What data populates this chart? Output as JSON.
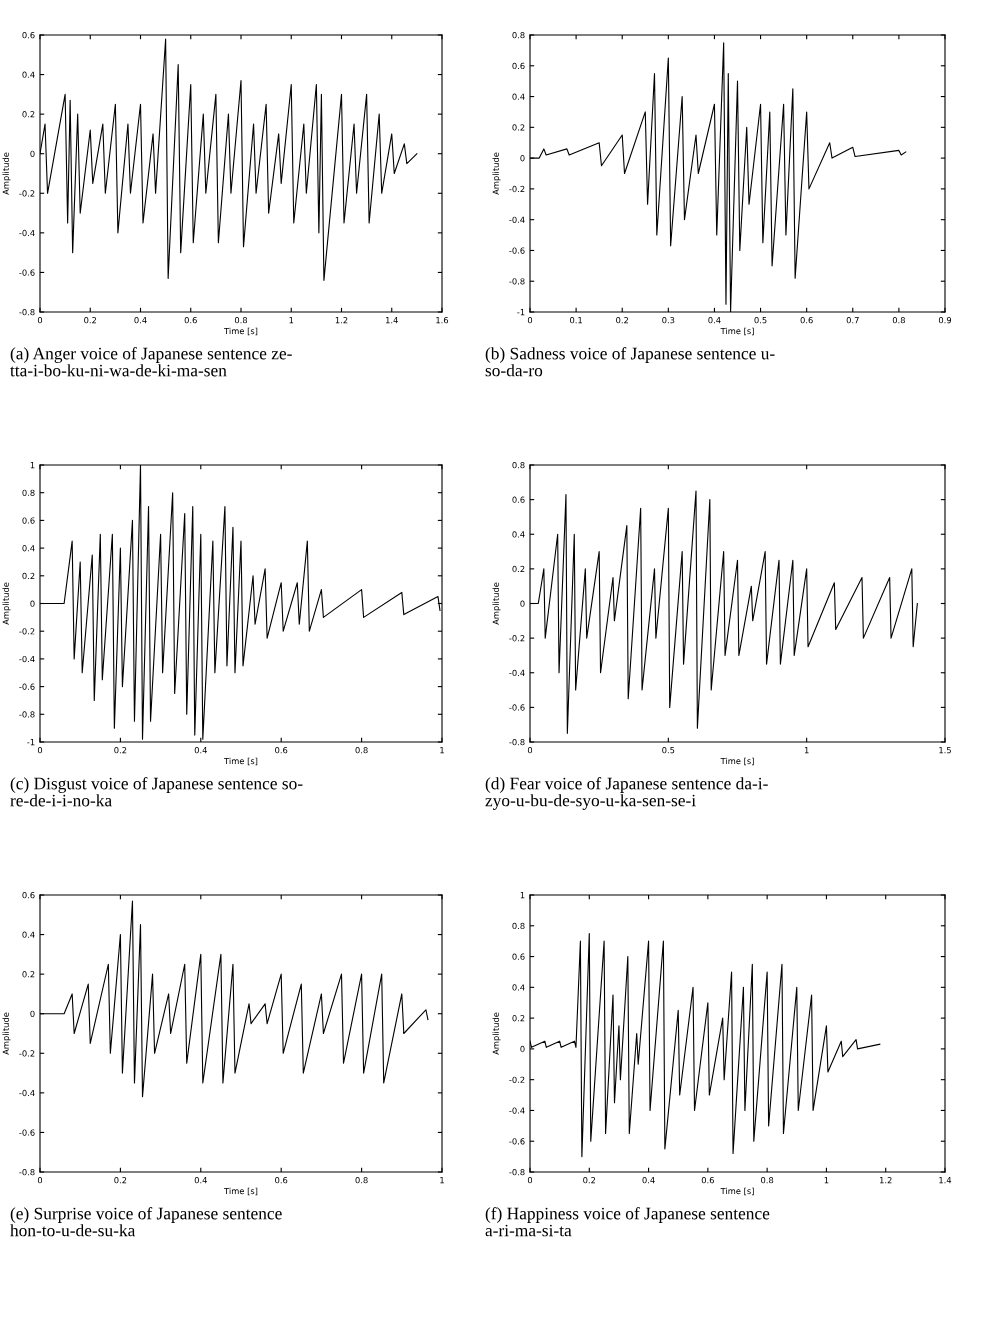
{
  "chart_data": [
    {
      "type": "line",
      "xlabel": "Time [s]",
      "ylabel": "Amplitude",
      "xlim": [
        0,
        1.6
      ],
      "xticks": [
        0,
        0.2,
        0.4,
        0.6,
        0.8,
        1,
        1.2,
        1.4,
        1.6
      ],
      "ylim": [
        -0.8,
        0.6
      ],
      "yticks": [
        -0.8,
        -0.6,
        -0.4,
        -0.2,
        0,
        0.2,
        0.4,
        0.6
      ],
      "grid": false,
      "marker": "none",
      "line_style": "solid",
      "annotations": [
        "(a) Anger voice of Japanese sentence ze-\ntta-i-bo-ku-ni-wa-de-ki-ma-sen"
      ],
      "series": [
        {
          "color": "#000000",
          "x": [
            0,
            0.02,
            0.03,
            0.1,
            0.11,
            0.12,
            0.13,
            0.15,
            0.16,
            0.2,
            0.21,
            0.25,
            0.26,
            0.3,
            0.31,
            0.35,
            0.36,
            0.4,
            0.41,
            0.45,
            0.46,
            0.5,
            0.51,
            0.55,
            0.56,
            0.6,
            0.61,
            0.65,
            0.66,
            0.7,
            0.71,
            0.75,
            0.76,
            0.8,
            0.81,
            0.85,
            0.86,
            0.9,
            0.91,
            0.95,
            0.96,
            1.0,
            1.01,
            1.05,
            1.06,
            1.1,
            1.11,
            1.12,
            1.13,
            1.2,
            1.21,
            1.25,
            1.26,
            1.3,
            1.31,
            1.35,
            1.36,
            1.4,
            1.41,
            1.45,
            1.46,
            1.5
          ],
          "values": [
            0,
            0.15,
            -0.2,
            0.3,
            -0.35,
            0.27,
            -0.5,
            0.2,
            -0.3,
            0.12,
            -0.15,
            0.15,
            -0.2,
            0.25,
            -0.4,
            0.15,
            -0.2,
            0.25,
            -0.35,
            0.1,
            -0.2,
            0.58,
            -0.63,
            0.45,
            -0.5,
            0.35,
            -0.45,
            0.2,
            -0.2,
            0.3,
            -0.45,
            0.2,
            -0.2,
            0.37,
            -0.47,
            0.15,
            -0.2,
            0.25,
            -0.3,
            0.1,
            -0.15,
            0.35,
            -0.35,
            0.15,
            -0.2,
            0.35,
            -0.4,
            0.3,
            -0.64,
            0.3,
            -0.35,
            0.15,
            -0.2,
            0.3,
            -0.35,
            0.2,
            -0.2,
            0.1,
            -0.1,
            0.05,
            -0.05,
            0
          ]
        }
      ]
    },
    {
      "type": "line",
      "xlabel": "Time [s]",
      "ylabel": "Amplitude",
      "xlim": [
        0,
        0.9
      ],
      "xticks": [
        0,
        0.1,
        0.2,
        0.3,
        0.4,
        0.5,
        0.6,
        0.7,
        0.8,
        0.9
      ],
      "ylim": [
        -1,
        0.8
      ],
      "yticks": [
        -1,
        -0.8,
        -0.6,
        -0.4,
        -0.2,
        0,
        0.2,
        0.4,
        0.6,
        0.8
      ],
      "grid": false,
      "marker": "none",
      "line_style": "solid",
      "annotations": [
        "(b) Sadness voice of Japanese sentence u-\nso-da-ro"
      ],
      "series": [
        {
          "color": "#000000",
          "x": [
            0,
            0.02,
            0.03,
            0.035,
            0.08,
            0.085,
            0.15,
            0.155,
            0.2,
            0.205,
            0.25,
            0.255,
            0.27,
            0.275,
            0.3,
            0.305,
            0.33,
            0.335,
            0.36,
            0.365,
            0.4,
            0.405,
            0.42,
            0.425,
            0.43,
            0.435,
            0.45,
            0.455,
            0.47,
            0.475,
            0.5,
            0.505,
            0.52,
            0.525,
            0.55,
            0.555,
            0.57,
            0.575,
            0.6,
            0.605,
            0.65,
            0.655,
            0.7,
            0.705,
            0.8,
            0.805,
            0.815
          ],
          "values": [
            0,
            0,
            0.06,
            0.02,
            0.06,
            0.02,
            0.1,
            -0.05,
            0.15,
            -0.1,
            0.3,
            -0.3,
            0.55,
            -0.5,
            0.65,
            -0.57,
            0.4,
            -0.4,
            0.15,
            -0.1,
            0.35,
            -0.5,
            0.75,
            -0.95,
            0.55,
            -1.0,
            0.5,
            -0.6,
            0.2,
            -0.3,
            0.35,
            -0.55,
            0.3,
            -0.7,
            0.35,
            -0.5,
            0.45,
            -0.78,
            0.3,
            -0.2,
            0.1,
            0.0,
            0.07,
            0.01,
            0.05,
            0.02,
            0.04
          ]
        }
      ]
    },
    {
      "type": "line",
      "xlabel": "Time [s]",
      "ylabel": "Amplitude",
      "xlim": [
        0,
        1
      ],
      "xticks": [
        0,
        0.2,
        0.4,
        0.6,
        0.8,
        1
      ],
      "ylim": [
        -1,
        1
      ],
      "yticks": [
        -1,
        -0.8,
        -0.6,
        -0.4,
        -0.2,
        0,
        0.2,
        0.4,
        0.6,
        0.8,
        1
      ],
      "grid": false,
      "marker": "none",
      "line_style": "solid",
      "annotations": [
        "(c) Disgust voice of Japanese sentence so-\nre-de-i-i-no-ka"
      ],
      "series": [
        {
          "color": "#000000",
          "x": [
            0,
            0.06,
            0.08,
            0.085,
            0.1,
            0.105,
            0.13,
            0.135,
            0.15,
            0.155,
            0.18,
            0.185,
            0.2,
            0.205,
            0.23,
            0.235,
            0.25,
            0.255,
            0.27,
            0.275,
            0.3,
            0.305,
            0.33,
            0.335,
            0.36,
            0.365,
            0.38,
            0.385,
            0.4,
            0.405,
            0.43,
            0.435,
            0.46,
            0.465,
            0.48,
            0.485,
            0.5,
            0.505,
            0.53,
            0.535,
            0.56,
            0.565,
            0.6,
            0.605,
            0.64,
            0.645,
            0.665,
            0.67,
            0.7,
            0.705,
            0.8,
            0.805,
            0.9,
            0.905,
            0.99,
            0.995
          ],
          "values": [
            0,
            0,
            0.45,
            -0.4,
            0.3,
            -0.5,
            0.35,
            -0.7,
            0.5,
            -0.55,
            0.5,
            -0.9,
            0.4,
            -0.6,
            0.6,
            -0.85,
            1.0,
            -0.98,
            0.7,
            -0.85,
            0.5,
            -0.5,
            0.8,
            -0.65,
            0.65,
            -0.8,
            0.7,
            -0.95,
            0.5,
            -0.98,
            0.45,
            -0.5,
            0.7,
            -0.45,
            0.55,
            -0.5,
            0.45,
            -0.45,
            0.2,
            -0.15,
            0.25,
            -0.25,
            0.15,
            -0.2,
            0.15,
            -0.15,
            0.45,
            -0.2,
            0.1,
            -0.1,
            0.1,
            -0.1,
            0.08,
            -0.08,
            0.05,
            -0.05
          ]
        }
      ]
    },
    {
      "type": "line",
      "xlabel": "Time [s]",
      "ylabel": "Amplitude",
      "xlim": [
        0,
        1.5
      ],
      "xticks": [
        0,
        0.5,
        1,
        1.5
      ],
      "ylim": [
        -0.8,
        0.8
      ],
      "yticks": [
        -0.8,
        -0.6,
        -0.4,
        -0.2,
        0,
        0.2,
        0.4,
        0.6,
        0.8
      ],
      "grid": false,
      "marker": "none",
      "line_style": "solid",
      "annotations": [
        "(d) Fear voice of Japanese sentence da-i-\nzyo-u-bu-de-syo-u-ka-sen-se-i"
      ],
      "series": [
        {
          "color": "#000000",
          "x": [
            0,
            0.03,
            0.05,
            0.055,
            0.1,
            0.105,
            0.13,
            0.135,
            0.16,
            0.165,
            0.2,
            0.205,
            0.25,
            0.255,
            0.3,
            0.305,
            0.35,
            0.355,
            0.4,
            0.405,
            0.45,
            0.455,
            0.5,
            0.505,
            0.55,
            0.555,
            0.6,
            0.605,
            0.65,
            0.655,
            0.7,
            0.705,
            0.75,
            0.755,
            0.8,
            0.805,
            0.85,
            0.855,
            0.9,
            0.905,
            0.95,
            0.955,
            1.0,
            1.005,
            1.1,
            1.105,
            1.2,
            1.205,
            1.3,
            1.305,
            1.38,
            1.385,
            1.4
          ],
          "values": [
            0,
            0,
            0.2,
            -0.2,
            0.4,
            -0.4,
            0.63,
            -0.75,
            0.4,
            -0.5,
            0.2,
            -0.2,
            0.3,
            -0.4,
            0.15,
            -0.1,
            0.45,
            -0.55,
            0.55,
            -0.5,
            0.2,
            -0.2,
            0.55,
            -0.6,
            0.3,
            -0.35,
            0.65,
            -0.72,
            0.6,
            -0.5,
            0.3,
            -0.3,
            0.25,
            -0.3,
            0.1,
            -0.1,
            0.3,
            -0.35,
            0.25,
            -0.35,
            0.25,
            -0.3,
            0.2,
            -0.25,
            0.12,
            -0.15,
            0.15,
            -0.2,
            0.15,
            -0.2,
            0.2,
            -0.25,
            0
          ]
        }
      ]
    },
    {
      "type": "line",
      "xlabel": "Time [s]",
      "ylabel": "Amplitude",
      "xlim": [
        0,
        1
      ],
      "xticks": [
        0,
        0.2,
        0.4,
        0.6,
        0.8,
        1
      ],
      "ylim": [
        -0.8,
        0.6
      ],
      "yticks": [
        -0.8,
        -0.6,
        -0.4,
        -0.2,
        0,
        0.2,
        0.4,
        0.6
      ],
      "grid": false,
      "marker": "none",
      "line_style": "solid",
      "annotations": [
        "(e) Surprise voice of Japanese sentence\nhon-to-u-de-su-ka"
      ],
      "series": [
        {
          "color": "#000000",
          "x": [
            0,
            0.06,
            0.08,
            0.085,
            0.12,
            0.125,
            0.17,
            0.175,
            0.2,
            0.205,
            0.23,
            0.235,
            0.25,
            0.255,
            0.28,
            0.285,
            0.32,
            0.325,
            0.36,
            0.365,
            0.4,
            0.405,
            0.45,
            0.455,
            0.48,
            0.485,
            0.52,
            0.525,
            0.56,
            0.565,
            0.6,
            0.605,
            0.65,
            0.655,
            0.7,
            0.705,
            0.75,
            0.755,
            0.8,
            0.805,
            0.85,
            0.855,
            0.9,
            0.905,
            0.96,
            0.965
          ],
          "values": [
            0,
            0,
            0.1,
            -0.1,
            0.15,
            -0.15,
            0.25,
            -0.2,
            0.4,
            -0.3,
            0.57,
            -0.35,
            0.45,
            -0.42,
            0.2,
            -0.2,
            0.1,
            -0.1,
            0.25,
            -0.25,
            0.3,
            -0.35,
            0.3,
            -0.35,
            0.25,
            -0.3,
            0.05,
            -0.05,
            0.05,
            -0.05,
            0.2,
            -0.2,
            0.15,
            -0.3,
            0.1,
            -0.1,
            0.2,
            -0.25,
            0.2,
            -0.3,
            0.2,
            -0.35,
            0.1,
            -0.1,
            0.02,
            -0.03
          ]
        }
      ]
    },
    {
      "type": "line",
      "xlabel": "Time [s]",
      "ylabel": "Amplitude",
      "xlim": [
        0,
        1.4
      ],
      "xticks": [
        0,
        0.2,
        0.4,
        0.6,
        0.8,
        1,
        1.2,
        1.4
      ],
      "ylim": [
        -0.8,
        1
      ],
      "yticks": [
        -0.8,
        -0.6,
        -0.4,
        -0.2,
        0,
        0.2,
        0.4,
        0.6,
        0.8,
        1
      ],
      "grid": false,
      "marker": "none",
      "line_style": "solid",
      "annotations": [
        "(f) Happiness voice of Japanese sentence\na-ri-ma-si-ta"
      ],
      "series": [
        {
          "color": "#000000",
          "x": [
            0,
            0.005,
            0.05,
            0.055,
            0.1,
            0.105,
            0.15,
            0.155,
            0.17,
            0.175,
            0.2,
            0.205,
            0.25,
            0.255,
            0.28,
            0.285,
            0.3,
            0.305,
            0.33,
            0.335,
            0.36,
            0.365,
            0.4,
            0.405,
            0.45,
            0.455,
            0.5,
            0.505,
            0.55,
            0.555,
            0.6,
            0.605,
            0.65,
            0.655,
            0.68,
            0.685,
            0.72,
            0.725,
            0.75,
            0.755,
            0.8,
            0.805,
            0.85,
            0.855,
            0.9,
            0.905,
            0.95,
            0.955,
            1.0,
            1.005,
            1.05,
            1.055,
            1.1,
            1.105,
            1.18
          ],
          "values": [
            0.05,
            0.01,
            0.05,
            0.01,
            0.05,
            0.01,
            0.05,
            0.01,
            0.7,
            -0.7,
            0.75,
            -0.6,
            0.7,
            -0.55,
            0.35,
            -0.35,
            0.15,
            -0.2,
            0.6,
            -0.55,
            0.1,
            -0.1,
            0.7,
            -0.4,
            0.7,
            -0.65,
            0.25,
            -0.3,
            0.4,
            -0.4,
            0.3,
            -0.3,
            0.2,
            -0.2,
            0.5,
            -0.68,
            0.4,
            -0.4,
            0.55,
            -0.6,
            0.5,
            -0.5,
            0.55,
            -0.55,
            0.4,
            -0.4,
            0.35,
            -0.4,
            0.15,
            -0.15,
            0.05,
            -0.05,
            0.06,
            0.0,
            0.03
          ]
        }
      ]
    }
  ]
}
